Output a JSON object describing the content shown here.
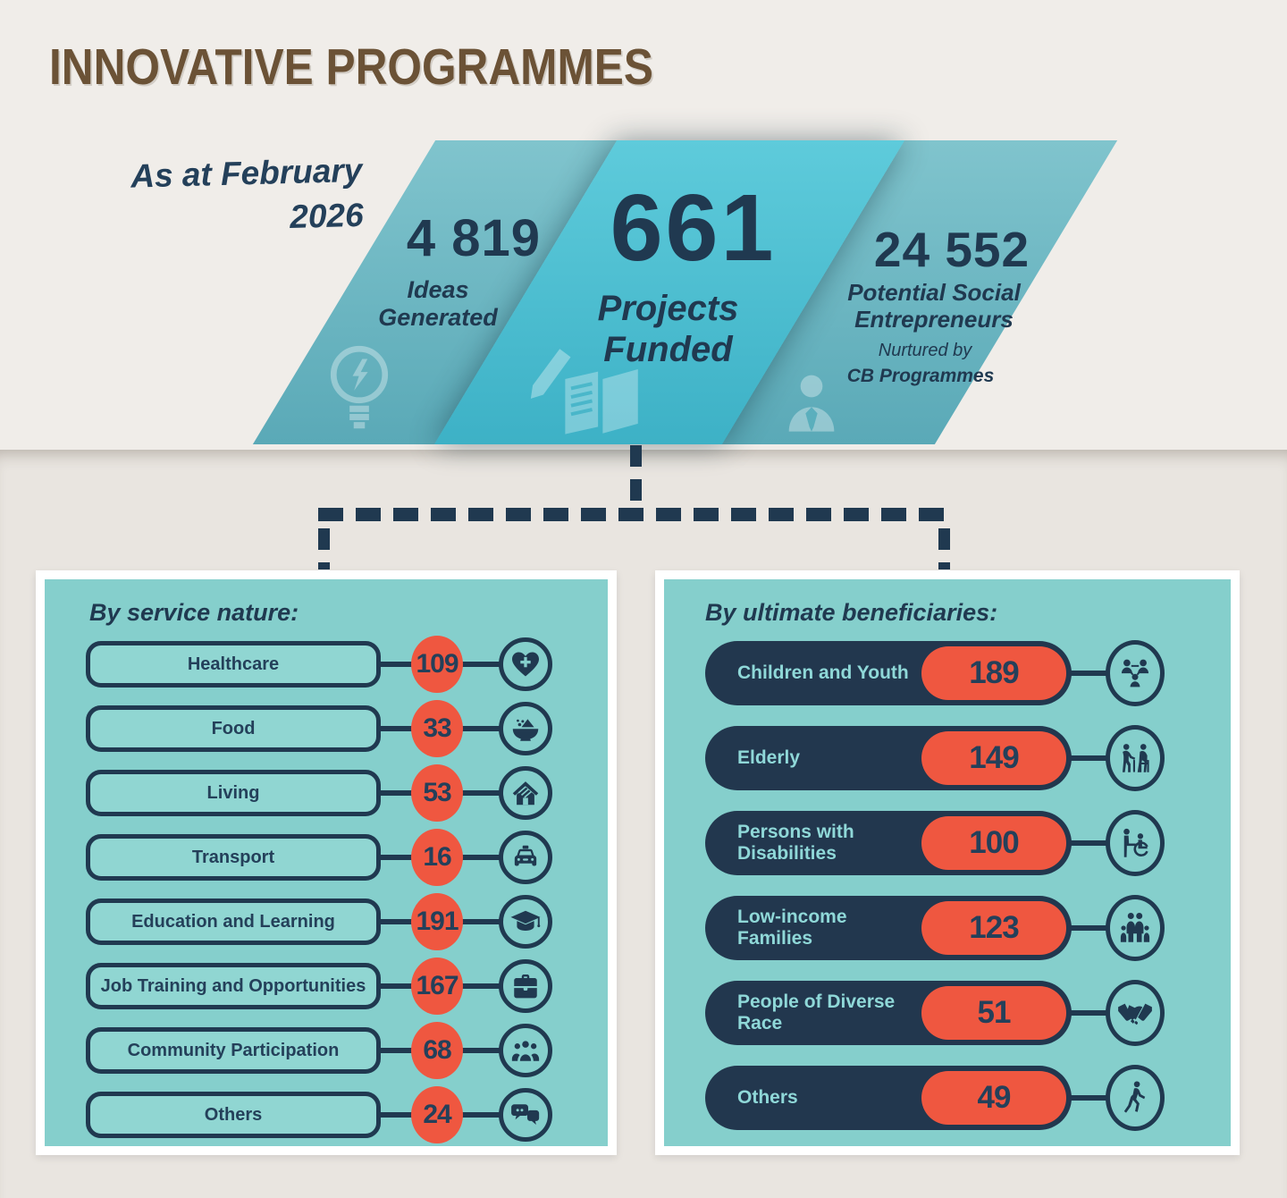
{
  "title": "INNOVATIVE PROGRAMMES",
  "as_at": {
    "line1": "As at February",
    "line2": "2026"
  },
  "stats": [
    {
      "value": "4 819",
      "label_lines": [
        "Ideas",
        "Generated"
      ],
      "icon": "lightbulb-idea"
    },
    {
      "value": "661",
      "label_lines": [
        "Projects",
        "Funded"
      ],
      "icon": "notebook-pencil"
    },
    {
      "value": "24 552",
      "label_lines": [
        "Potential Social",
        "Entrepreneurs"
      ],
      "sub_lines": [
        "Nurtured by",
        "CB Programmes"
      ],
      "icon": "businessperson"
    }
  ],
  "service_nature": {
    "heading": "By service nature:",
    "rows": [
      {
        "label": "Healthcare",
        "value": "109",
        "icon": "heart-plus"
      },
      {
        "label": "Food",
        "value": "33",
        "icon": "food-bowl"
      },
      {
        "label": "Living",
        "value": "53",
        "icon": "house"
      },
      {
        "label": "Transport",
        "value": "16",
        "icon": "taxi"
      },
      {
        "label": "Education and Learning",
        "value": "191",
        "icon": "graduation-cap"
      },
      {
        "label": "Job Training and Opportunities",
        "value": "167",
        "icon": "briefcase"
      },
      {
        "label": "Community Participation",
        "value": "68",
        "icon": "people-group"
      },
      {
        "label": "Others",
        "value": "24",
        "icon": "chat-bubbles"
      }
    ]
  },
  "beneficiaries": {
    "heading": "By ultimate beneficiaries:",
    "rows": [
      {
        "label": "Children and Youth",
        "value": "189",
        "icon": "children"
      },
      {
        "label": "Elderly",
        "value": "149",
        "icon": "elderly"
      },
      {
        "label": "Persons with Disabilities",
        "value": "100",
        "icon": "wheelchair"
      },
      {
        "label": "Low-income Families",
        "value": "123",
        "icon": "family"
      },
      {
        "label": "People of Diverse Race",
        "value": "51",
        "icon": "handshake"
      },
      {
        "label": "Others",
        "value": "49",
        "icon": "walking-person"
      }
    ]
  },
  "colors": {
    "navy": "#203950",
    "red": "#ef5740",
    "teal_card": "#85cfcc",
    "navy_pill": "#22374e",
    "brown_title": "#6b5236",
    "mid_panel": "#4fc2d4",
    "side_panel": "#6db6c2"
  }
}
